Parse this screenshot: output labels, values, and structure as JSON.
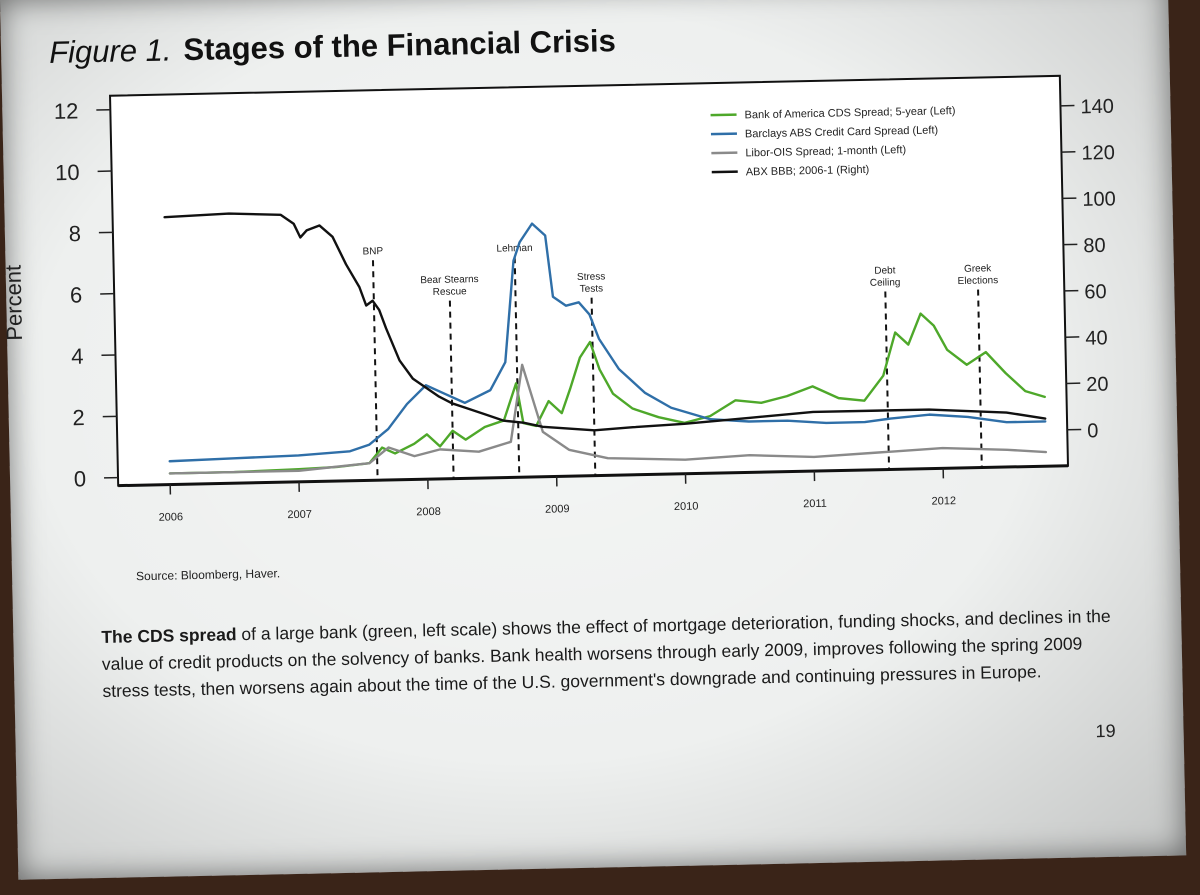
{
  "figure": {
    "label": "Figure 1.",
    "title": "Stages of the Financial Crisis"
  },
  "source": "Source: Bloomberg, Haver.",
  "caption": {
    "bold": "The CDS spread",
    "text": " of a large bank (green, left scale) shows the effect of mortgage deterioration, funding shocks, and declines in the value of credit products on the solvency of banks.  Bank health worsens through early 2009, improves following the spring 2009 stress tests, then worsens again about the time of the U.S. government's downgrade and continuing pressures in Europe."
  },
  "page_number": "19",
  "left_axis_label": "Percent",
  "chart_data": {
    "type": "line",
    "title": "Stages of the Financial Crisis",
    "x_ticks": [
      "2006",
      "2007",
      "2008",
      "2009",
      "2010",
      "2011",
      "2012"
    ],
    "xlim": [
      2006.0,
      2013.0
    ],
    "y_left": {
      "label": "Percent",
      "lim": [
        0,
        12
      ],
      "ticks": [
        0,
        2,
        4,
        6,
        8,
        10,
        12
      ]
    },
    "y_right": {
      "lim": [
        0,
        140
      ],
      "ticks": [
        0,
        20,
        40,
        60,
        80,
        100,
        120,
        140
      ]
    },
    "grid": false,
    "legend_position": "top-right",
    "series": [
      {
        "name": "Bank of America CDS Spread; 5-year (Left)",
        "axis": "left",
        "color": "#4ea82a",
        "x": [
          2006.0,
          2006.5,
          2007.0,
          2007.3,
          2007.55,
          2007.65,
          2007.75,
          2007.9,
          2008.0,
          2008.1,
          2008.2,
          2008.3,
          2008.45,
          2008.6,
          2008.7,
          2008.75,
          2008.85,
          2008.95,
          2009.05,
          2009.12,
          2009.2,
          2009.28,
          2009.35,
          2009.45,
          2009.6,
          2009.8,
          2010.0,
          2010.2,
          2010.4,
          2010.6,
          2010.8,
          2011.0,
          2011.2,
          2011.4,
          2011.55,
          2011.65,
          2011.75,
          2011.85,
          2011.95,
          2012.05,
          2012.2,
          2012.35,
          2012.5,
          2012.65,
          2012.8
        ],
        "y": [
          0.1,
          0.1,
          0.15,
          0.2,
          0.3,
          0.8,
          0.6,
          0.9,
          1.2,
          0.8,
          1.3,
          1.0,
          1.4,
          1.6,
          2.8,
          1.5,
          1.4,
          2.2,
          1.8,
          2.6,
          3.6,
          4.1,
          3.2,
          2.4,
          1.9,
          1.6,
          1.4,
          1.6,
          2.1,
          2.0,
          2.2,
          2.5,
          2.1,
          2.0,
          2.8,
          4.2,
          3.8,
          4.8,
          4.4,
          3.6,
          3.1,
          3.5,
          2.8,
          2.2,
          2.0
        ]
      },
      {
        "name": "Barclays ABS Credit Card Spread (Left)",
        "axis": "left",
        "color": "#2f6fa8",
        "x": [
          2006.0,
          2006.5,
          2007.0,
          2007.4,
          2007.55,
          2007.7,
          2007.85,
          2008.0,
          2008.15,
          2008.3,
          2008.5,
          2008.62,
          2008.7,
          2008.75,
          2008.85,
          2008.95,
          2009.0,
          2009.1,
          2009.2,
          2009.28,
          2009.35,
          2009.5,
          2009.7,
          2009.9,
          2010.2,
          2010.5,
          2010.8,
          2011.1,
          2011.4,
          2011.6,
          2011.9,
          2012.2,
          2012.5,
          2012.8
        ],
        "y": [
          0.5,
          0.55,
          0.6,
          0.7,
          0.9,
          1.4,
          2.2,
          2.8,
          2.5,
          2.2,
          2.6,
          3.5,
          6.8,
          7.4,
          8.0,
          7.6,
          5.6,
          5.3,
          5.4,
          5.0,
          4.2,
          3.2,
          2.4,
          1.9,
          1.5,
          1.4,
          1.4,
          1.3,
          1.3,
          1.4,
          1.5,
          1.4,
          1.2,
          1.2
        ]
      },
      {
        "name": "Libor-OIS Spread; 1-month (Left)",
        "axis": "left",
        "color": "#8a8a8a",
        "x": [
          2006.0,
          2007.0,
          2007.55,
          2007.7,
          2007.9,
          2008.1,
          2008.4,
          2008.65,
          2008.75,
          2008.9,
          2009.1,
          2009.4,
          2010.0,
          2010.5,
          2011.0,
          2011.5,
          2012.0,
          2012.5,
          2012.8
        ],
        "y": [
          0.1,
          0.1,
          0.3,
          0.8,
          0.5,
          0.7,
          0.6,
          0.9,
          3.4,
          1.2,
          0.6,
          0.3,
          0.2,
          0.3,
          0.2,
          0.3,
          0.4,
          0.3,
          0.2
        ]
      },
      {
        "name": "ABX BBB; 2006-1 (Right)",
        "axis": "right",
        "color": "#111111",
        "x": [
          2006.0,
          2006.5,
          2006.9,
          2007.0,
          2007.05,
          2007.1,
          2007.2,
          2007.3,
          2007.4,
          2007.5,
          2007.55,
          2007.6,
          2007.65,
          2007.7,
          2007.8,
          2007.9,
          2008.0,
          2008.1,
          2008.2,
          2008.3,
          2008.45,
          2008.6,
          2008.75,
          2008.9,
          2009.1,
          2009.3,
          2009.6,
          2010.0,
          2010.5,
          2011.0,
          2011.5,
          2011.9,
          2012.2,
          2012.5,
          2012.8
        ],
        "y": [
          100,
          101,
          100,
          96,
          90,
          93,
          95,
          90,
          78,
          68,
          60,
          62,
          58,
          50,
          36,
          28,
          24,
          20,
          17,
          15,
          12,
          9,
          8,
          6,
          5,
          4,
          5,
          6,
          8,
          10,
          10,
          10,
          9,
          8,
          5
        ]
      }
    ],
    "annotations": [
      {
        "x": 2007.61,
        "text": [
          "BNP"
        ]
      },
      {
        "x": 2008.2,
        "text": [
          "Bear Stearns",
          "Rescue"
        ]
      },
      {
        "x": 2008.71,
        "text": [
          "Lehman"
        ]
      },
      {
        "x": 2009.3,
        "text": [
          "Stress",
          "Tests"
        ]
      },
      {
        "x": 2011.58,
        "text": [
          "Debt",
          "Ceiling"
        ]
      },
      {
        "x": 2012.3,
        "text": [
          "Greek",
          "Elections"
        ]
      }
    ]
  }
}
